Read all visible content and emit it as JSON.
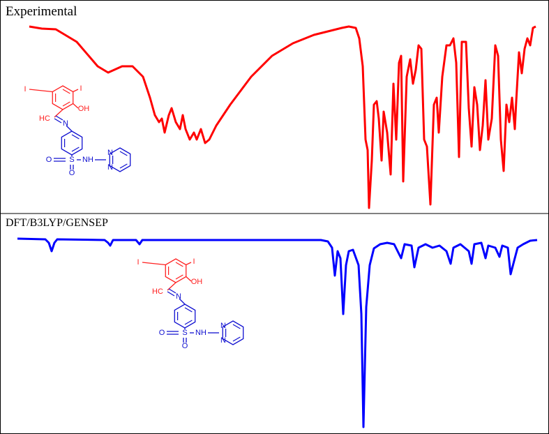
{
  "panels": [
    {
      "label": "Experimental",
      "molecule": {
        "atoms": [
          "I",
          "I",
          "OH",
          "HC",
          "N",
          "O",
          "S",
          "NH",
          "N",
          "N",
          "O"
        ]
      }
    },
    {
      "label": "DFT/B3LYP/GENSEP",
      "molecule": {
        "atoms": [
          "I",
          "I",
          "OH",
          "HC",
          "N",
          "O",
          "S",
          "NH",
          "N",
          "N",
          "O"
        ]
      }
    }
  ]
}
